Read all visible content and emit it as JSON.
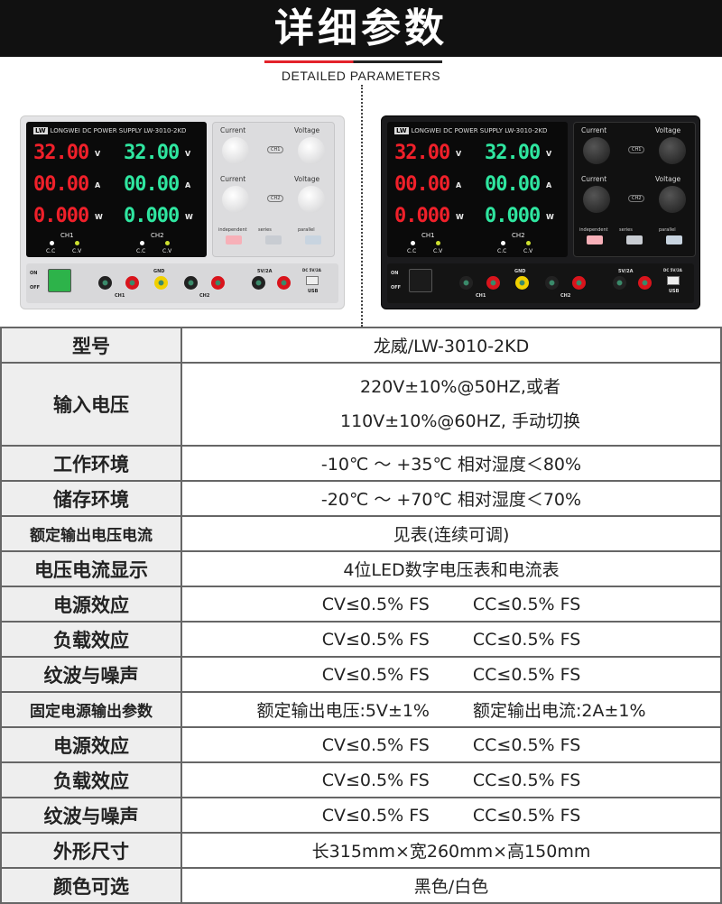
{
  "header": {
    "title": "详细参数",
    "subtitle": "DETAILED PARAMETERS",
    "accent": "#e3222a"
  },
  "device": {
    "logo": "LW",
    "brand": "LONGWEI",
    "model_line": "DC POWER SUPPLY  LW-3010-2KD",
    "ch1": {
      "v": "32.00",
      "a": "00.00",
      "w": "0.000",
      "label": "CH1"
    },
    "ch2": {
      "v": "32.00",
      "a": "00.00",
      "w": "0.000",
      "label": "CH2"
    },
    "units": {
      "v": "V",
      "a": "A",
      "w": "W"
    },
    "cc": "C.C",
    "cv": "C.V",
    "current": "Current",
    "voltage": "Voltage",
    "knob_ch1": "CH1",
    "knob_ch2": "CH2",
    "modes": [
      "independent",
      "series",
      "parallel"
    ],
    "on": "ON",
    "off": "OFF",
    "gnd": "GND",
    "usb": "USB",
    "usb_rating": "DC 5V/2A",
    "fixed": "5V/2A",
    "minus": "−",
    "plus": "+"
  },
  "table": [
    {
      "key": "型号",
      "value": "龙威/LW-3010-2KD"
    },
    {
      "key": "输入电压",
      "lines": [
        "220V±10%@50HZ,或者",
        "110V±10%@60HZ, 手动切换"
      ]
    },
    {
      "key": "工作环境",
      "value": "-10℃ ～ +35℃ 相对湿度＜80%"
    },
    {
      "key": "储存环境",
      "value": "-20℃ ～ +70℃ 相对湿度＜70%"
    },
    {
      "key": "额定输出电压电流",
      "value": "见表(连续可调)"
    },
    {
      "key": "电压电流显示",
      "value": "4位LED数字电压表和电流表"
    },
    {
      "key": "电源效应",
      "cols": [
        "CV≤0.5% FS",
        "CC≤0.5% FS"
      ]
    },
    {
      "key": "负载效应",
      "cols": [
        "CV≤0.5% FS",
        "CC≤0.5% FS"
      ]
    },
    {
      "key": "纹波与噪声",
      "cols": [
        "CV≤0.5% FS",
        "CC≤0.5% FS"
      ]
    },
    {
      "key": "固定电源输出参数",
      "cols": [
        "额定输出电压:5V±1%",
        "额定输出电流:2A±1%"
      ]
    },
    {
      "key": "电源效应",
      "cols": [
        "CV≤0.5% FS",
        "CC≤0.5% FS"
      ]
    },
    {
      "key": "负载效应",
      "cols": [
        "CV≤0.5% FS",
        "CC≤0.5% FS"
      ]
    },
    {
      "key": "纹波与噪声",
      "cols": [
        "CV≤0.5% FS",
        "CC≤0.5% FS"
      ]
    },
    {
      "key": "外形尺寸",
      "value": "长315mm×宽260mm×高150mm"
    },
    {
      "key": "颜色可选",
      "value": "黑色/白色"
    }
  ]
}
